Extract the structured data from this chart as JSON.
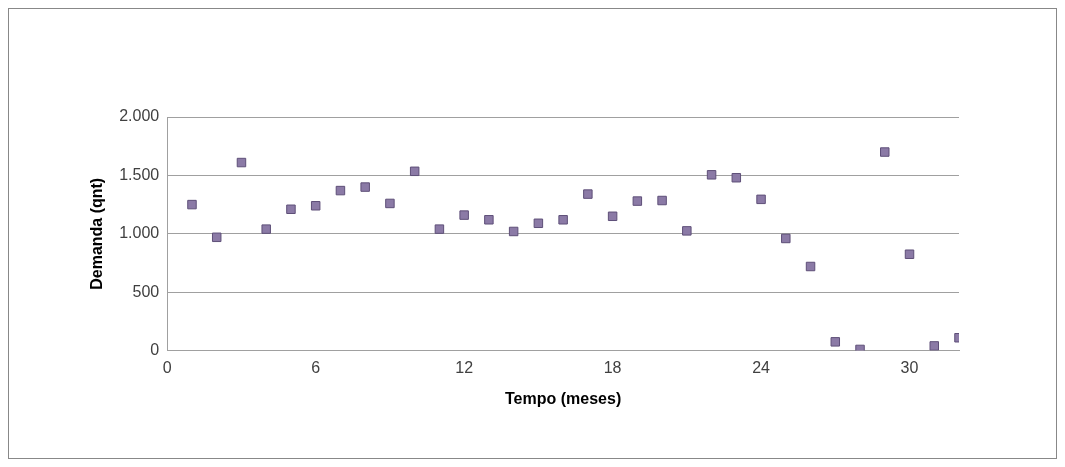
{
  "chart_data": {
    "type": "scatter",
    "xlabel": "Tempo (meses)",
    "ylabel": "Demanda (qnt)",
    "x": [
      1,
      2,
      3,
      4,
      5,
      6,
      7,
      8,
      9,
      10,
      11,
      12,
      13,
      14,
      15,
      16,
      17,
      18,
      19,
      20,
      21,
      22,
      23,
      24,
      25,
      26,
      27,
      28,
      29,
      30,
      31,
      32
    ],
    "series": [
      {
        "color": "#8b7aa6",
        "values": [
          1250,
          970,
          1610,
          1040,
          1210,
          1240,
          1370,
          1400,
          1260,
          1535,
          1040,
          1160,
          1120,
          1020,
          1090,
          1120,
          1340,
          1150,
          1280,
          1285,
          1025,
          1505,
          1480,
          1295,
          960,
          720,
          75,
          10,
          1700,
          825,
          40,
          110
        ]
      }
    ],
    "xlim": [
      0,
      32
    ],
    "xticks": [
      0,
      6,
      12,
      18,
      24,
      30
    ],
    "ylim": [
      0,
      2000
    ],
    "yticks": [
      {
        "value": 0,
        "label": "0"
      },
      {
        "value": 500,
        "label": "500"
      },
      {
        "value": 1000,
        "label": "1.000"
      },
      {
        "value": 1500,
        "label": "1.500"
      },
      {
        "value": 2000,
        "label": "2.000"
      }
    ],
    "grid": "y",
    "legend": false,
    "marker": "square"
  }
}
